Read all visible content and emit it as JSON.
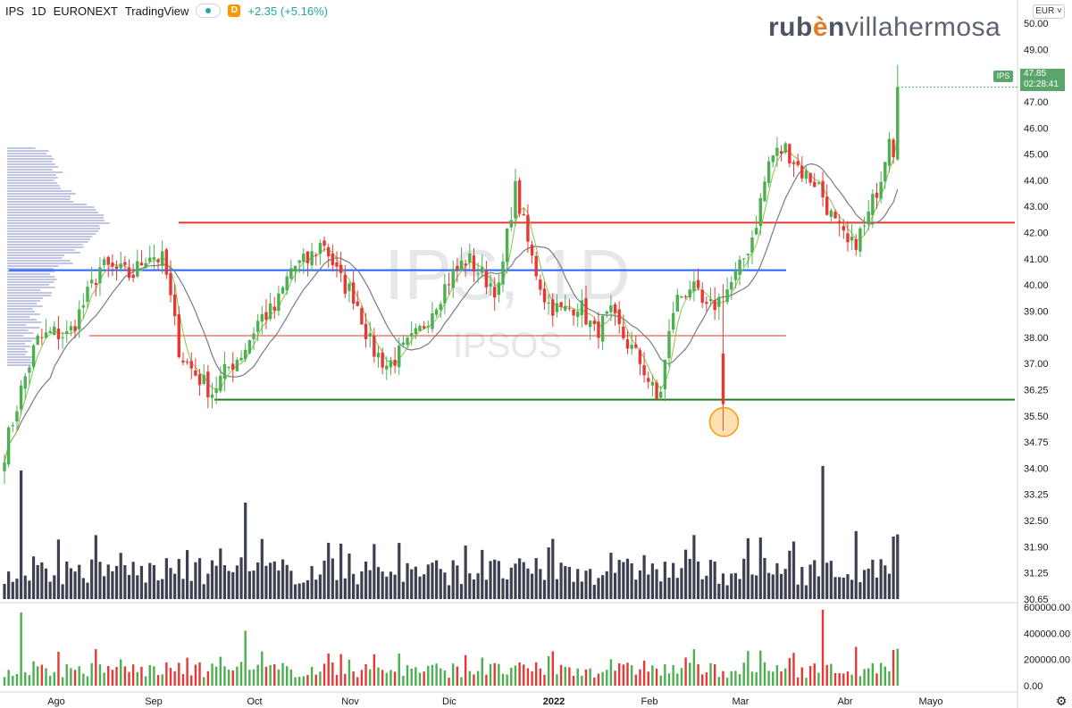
{
  "header": {
    "symbol": "IPS",
    "interval": "1D",
    "exchange": "EURONEXT",
    "source": "TradingView",
    "badge": "D",
    "change": "+2.35 (+5.16%)"
  },
  "brand": {
    "part1": "rub",
    "part2": "è",
    "part3": "n",
    "part4": "villahermosa"
  },
  "currency": "EUR",
  "last_price": {
    "symbol": "IPS",
    "price": "47.85",
    "countdown": "02:28:41"
  },
  "watermark": {
    "symbol": "IPS, 1D",
    "name": "IPSOS"
  },
  "colors": {
    "up": "#4caf50",
    "down": "#e53935",
    "volume": "#3d4050",
    "resistance": "#e53935",
    "mid": "#2962ff",
    "support": "#1b7f1b",
    "ma_fast": "#8bc34a",
    "ma_slow": "#787b86",
    "highlight": "#ff9800"
  },
  "chart_data": [
    {
      "type": "candlestick",
      "title": "IPS · 1D · EURONEXT",
      "y_ticks": [
        "50.00",
        "49.00",
        "48.00",
        "47.00",
        "46.00",
        "45.00",
        "44.00",
        "43.00",
        "42.00",
        "41.00",
        "40.00",
        "39.00",
        "38.00",
        "37.00",
        "36.25",
        "35.50",
        "34.75",
        "34.00",
        "33.25",
        "32.50",
        "31.90",
        "31.25",
        "30.65"
      ],
      "x_ticks": [
        "Ago",
        "Sep",
        "Oct",
        "Nov",
        "Dic",
        "2022",
        "Feb",
        "Mar",
        "Abr",
        "Mayo"
      ],
      "ylim": [
        30.65,
        50.0
      ],
      "levels": [
        {
          "name": "resistance",
          "value": 43.3,
          "color": "#e53935"
        },
        {
          "name": "mid",
          "value": 41.7,
          "color": "#2962ff"
        },
        {
          "name": "minor",
          "value": 39.5,
          "color": "#e53935"
        },
        {
          "name": "support",
          "value": 37.35,
          "color": "#1b7f1b"
        }
      ],
      "anchors": [
        [
          35.6,
          35.2
        ],
        [
          37.6,
          35.0
        ],
        [
          39.3,
          37.0
        ],
        [
          39.6,
          39.2
        ],
        [
          39.5,
          39.8
        ],
        [
          40.6,
          39.8
        ],
        [
          41.8,
          40.5
        ],
        [
          41.7,
          41.4
        ],
        [
          41.5,
          41.3
        ],
        [
          42.3,
          41.6
        ],
        [
          42.0,
          42.4
        ],
        [
          38.9,
          40.0
        ],
        [
          38.2,
          38.0
        ],
        [
          37.6,
          37.7
        ],
        [
          38.4,
          37.8
        ],
        [
          39.0,
          38.5
        ],
        [
          40.1,
          39.4
        ],
        [
          40.4,
          40.2
        ],
        [
          41.8,
          41.2
        ],
        [
          42.0,
          41.7
        ],
        [
          42.7,
          42.1
        ],
        [
          41.4,
          41.6
        ],
        [
          40.8,
          41.0
        ],
        [
          39.1,
          39.8
        ],
        [
          38.5,
          38.7
        ],
        [
          39.0,
          38.9
        ],
        [
          39.6,
          39.3
        ],
        [
          40.6,
          40.0
        ],
        [
          41.5,
          41.0
        ],
        [
          42.1,
          41.8
        ],
        [
          41.5,
          41.8
        ],
        [
          41.0,
          40.9
        ],
        [
          44.5,
          43.7
        ],
        [
          42.2,
          43.0
        ],
        [
          40.6,
          41.0
        ],
        [
          40.3,
          40.5
        ],
        [
          40.6,
          40.2
        ],
        [
          39.6,
          39.8
        ],
        [
          40.2,
          40.0
        ],
        [
          39.3,
          38.7
        ],
        [
          38.5,
          38.0
        ],
        [
          37.2,
          37.5
        ],
        [
          40.6,
          40.0
        ],
        [
          41.2,
          40.8
        ],
        [
          40.3,
          39.6
        ],
        [
          40.8,
          40.6
        ],
        [
          41.6,
          41.2
        ],
        [
          43.0,
          42.6
        ],
        [
          45.5,
          44.6
        ],
        [
          45.8,
          45.6
        ],
        [
          45.0,
          45.3
        ],
        [
          44.6,
          45.0
        ],
        [
          43.3,
          43.0
        ],
        [
          42.4,
          42.6
        ],
        [
          43.2,
          43.6
        ],
        [
          45.0,
          44.5
        ],
        [
          47.9,
          47.9
        ]
      ],
      "volume_ticks": [
        "600000.00",
        "400000.00",
        "200000.00",
        "0.00"
      ],
      "volume_ylim": [
        0,
        600000
      ],
      "volume_spikes": [
        {
          "bar": 4,
          "value": 560000
        },
        {
          "bar": 58,
          "value": 420000
        },
        {
          "bar": 197,
          "value": 580000
        }
      ]
    }
  ]
}
